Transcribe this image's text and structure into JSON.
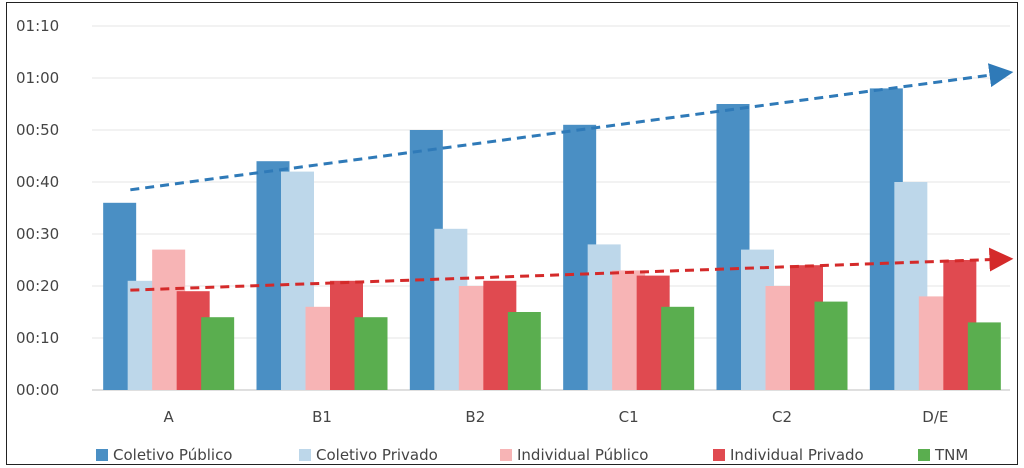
{
  "chart_data": {
    "type": "bar",
    "categories": [
      "A",
      "B1",
      "B2",
      "C1",
      "C2",
      "D/E"
    ],
    "y_unit": "minutes",
    "yticks": [
      "00:00",
      "00:10",
      "00:20",
      "00:30",
      "00:40",
      "00:50",
      "01:00",
      "01:10"
    ],
    "ylim": [
      0,
      70
    ],
    "grid": true,
    "legend_position": "bottom",
    "series": [
      {
        "name": "Coletivo Público",
        "color": "#4A8FC4",
        "values": [
          36,
          44,
          50,
          51,
          55,
          58
        ]
      },
      {
        "name": "Coletivo Privado",
        "color": "#BDD7EA",
        "values": [
          21,
          42,
          31,
          28,
          27,
          40
        ]
      },
      {
        "name": "Individual Público",
        "color": "#F7B4B5",
        "values": [
          27,
          16,
          20,
          23,
          20,
          18
        ]
      },
      {
        "name": "Individual Privado",
        "color": "#E04A50",
        "values": [
          19,
          21,
          21,
          22,
          24,
          25
        ]
      },
      {
        "name": "TNM",
        "color": "#5AAE4F",
        "values": [
          14,
          14,
          15,
          16,
          17,
          13
        ]
      }
    ],
    "annotations": [
      {
        "type": "trend-arrow",
        "style": "dashed",
        "color": "#2F7AB8",
        "from": {
          "category": "A",
          "y": 38.5
        },
        "to": {
          "category": "D/E",
          "y": 61
        }
      },
      {
        "type": "trend-arrow",
        "style": "dashed",
        "color": "#D42A2A",
        "from": {
          "category": "A",
          "y": 19.2
        },
        "to": {
          "category": "D/E",
          "y": 25.2
        }
      }
    ]
  }
}
